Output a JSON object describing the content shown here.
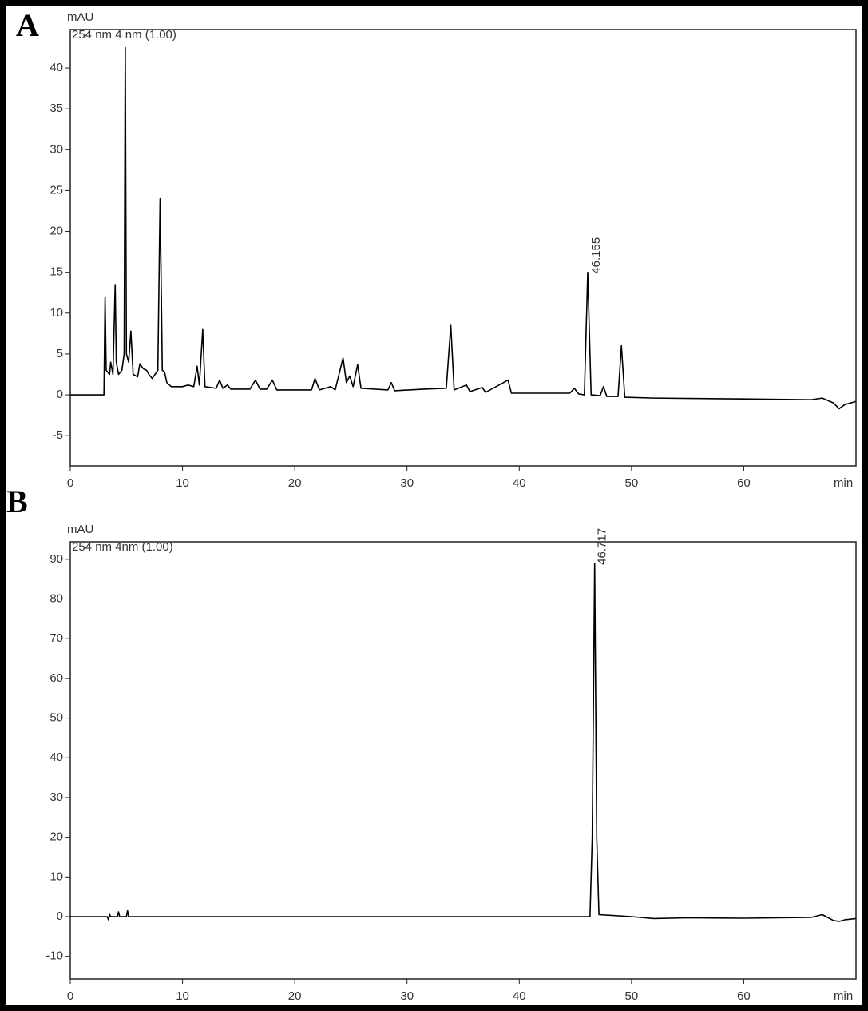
{
  "chart_data": [
    {
      "type": "line",
      "label": "A",
      "y_label": "mAU",
      "subtitle": "254 nm  4 nm (1.00)",
      "x_label": "min",
      "xlim": [
        0,
        70
      ],
      "xticks": [
        0,
        10,
        20,
        30,
        40,
        50,
        60
      ],
      "ylim": [
        -8.7,
        44.7
      ],
      "yticks": [
        -5,
        0,
        5,
        10,
        15,
        20,
        25,
        30,
        35,
        40
      ],
      "color": "#000000",
      "annotations": [
        "46.155"
      ],
      "x": [
        0,
        3.0,
        3.1,
        3.2,
        3.5,
        3.6,
        3.8,
        4.0,
        4.1,
        4.3,
        4.6,
        4.8,
        4.9,
        5.0,
        5.2,
        5.4,
        5.6,
        6.0,
        6.2,
        6.5,
        6.8,
        7.0,
        7.3,
        7.8,
        8.0,
        8.2,
        8.4,
        8.6,
        9,
        10,
        10.5,
        11,
        11.3,
        11.5,
        11.8,
        12.0,
        13,
        13.3,
        13.6,
        14.0,
        14.3,
        16,
        16.5,
        16.9,
        17.5,
        18.0,
        18.4,
        21.5,
        21.8,
        22.2,
        23.2,
        23.6,
        24.3,
        24.6,
        24.9,
        25.2,
        25.6,
        25.9,
        28.3,
        28.6,
        28.9,
        31.5,
        33.5,
        33.9,
        34.2,
        35.3,
        35.6,
        36.7,
        37,
        39,
        39.3,
        44.5,
        44.9,
        45.3,
        45.8,
        46.1,
        46.4,
        47.2,
        47.5,
        47.8,
        48.8,
        49.1,
        49.4,
        52,
        60,
        66,
        67,
        68,
        68.5,
        69,
        70
      ],
      "values": [
        0,
        0,
        12,
        3,
        2.5,
        4,
        2.5,
        13.5,
        4,
        2.5,
        3,
        5,
        42.5,
        5,
        4,
        7.8,
        2.5,
        2.2,
        3.8,
        3.2,
        3,
        2.5,
        2,
        3,
        24,
        3,
        2.8,
        1.5,
        1,
        1,
        1.2,
        1,
        3.5,
        1.2,
        8,
        1,
        0.8,
        1.8,
        0.8,
        1.2,
        0.7,
        0.7,
        1.8,
        0.7,
        0.7,
        1.8,
        0.6,
        0.6,
        2,
        0.6,
        1,
        0.6,
        4.5,
        1.5,
        2.3,
        1,
        3.7,
        0.8,
        0.6,
        1.5,
        0.5,
        0.7,
        0.8,
        8.5,
        0.6,
        1.2,
        0.4,
        0.9,
        0.3,
        1.8,
        0.2,
        0.2,
        0.8,
        0.1,
        0,
        15,
        0,
        -0.1,
        1,
        -0.2,
        -0.2,
        6,
        -0.3,
        -0.4,
        -0.5,
        -0.6,
        -0.4,
        -1,
        -1.7,
        -1.2,
        -0.8
      ]
    },
    {
      "type": "line",
      "label": "B",
      "y_label": "mAU",
      "subtitle": "254 nm 4nm (1.00)",
      "x_label": "min",
      "xlim": [
        0,
        70
      ],
      "xticks": [
        0,
        10,
        20,
        30,
        40,
        50,
        60
      ],
      "ylim": [
        -15.7,
        94.4
      ],
      "yticks": [
        -10,
        0,
        10,
        20,
        30,
        40,
        50,
        60,
        70,
        80,
        90
      ],
      "color": "#000000",
      "annotations": [
        "46.717"
      ],
      "x": [
        0,
        3.3,
        3.4,
        3.5,
        3.6,
        4.2,
        4.3,
        4.4,
        5.0,
        5.1,
        5.2,
        46.3,
        46.5,
        46.717,
        46.9,
        47.1,
        50,
        52,
        55,
        60,
        66,
        67,
        68,
        68.5,
        69,
        70
      ],
      "values": [
        0,
        0,
        -0.8,
        0.6,
        0,
        0,
        1.2,
        0,
        0,
        1.5,
        0,
        0,
        20,
        89,
        20,
        0.5,
        0,
        -0.5,
        -0.3,
        -0.4,
        -0.2,
        0.5,
        -1,
        -1.2,
        -0.8,
        -0.5
      ]
    }
  ]
}
